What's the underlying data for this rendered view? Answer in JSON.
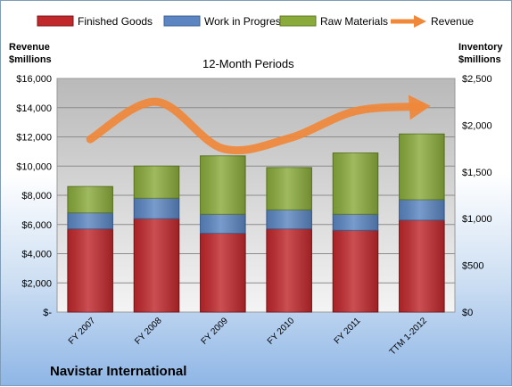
{
  "chart_data": {
    "type": "bar",
    "subtitle": "12-Month Periods",
    "company": "Navistar International",
    "categories": [
      "FY 2007",
      "FY 2008",
      "FY 2009",
      "FY 2010",
      "FY 2011",
      "TTM 1-2012"
    ],
    "series": [
      {
        "name": "Finished Goods",
        "axis": "left",
        "color": "#c0282c",
        "values": [
          5700,
          6400,
          5400,
          5700,
          5600,
          6300
        ]
      },
      {
        "name": "Work in Progress",
        "axis": "left",
        "color": "#5b86c2",
        "values": [
          1100,
          1400,
          1300,
          1300,
          1100,
          1400
        ]
      },
      {
        "name": "Raw Materials",
        "axis": "left",
        "color": "#8aab3c",
        "values": [
          1800,
          2200,
          4000,
          2900,
          4200,
          4500
        ]
      },
      {
        "name": "Revenue",
        "axis": "right",
        "type": "line",
        "color": "#f0883a",
        "values": [
          1850,
          2250,
          1750,
          1860,
          2150,
          2200
        ]
      }
    ],
    "ylabel_left": "Revenue $millions",
    "ylabel_right": "Inventory $millions",
    "ylim_left": [
      0,
      16000
    ],
    "ylim_right": [
      0,
      2500
    ],
    "left_ticks": [
      "$-",
      "$2,000",
      "$4,000",
      "$6,000",
      "$8,000",
      "$10,000",
      "$12,000",
      "$14,000",
      "$16,000"
    ],
    "right_ticks": [
      "$0",
      "$500",
      "$1,000",
      "$1,500",
      "$2,000",
      "$2,500"
    ],
    "grid": true,
    "legend_position": "top"
  }
}
